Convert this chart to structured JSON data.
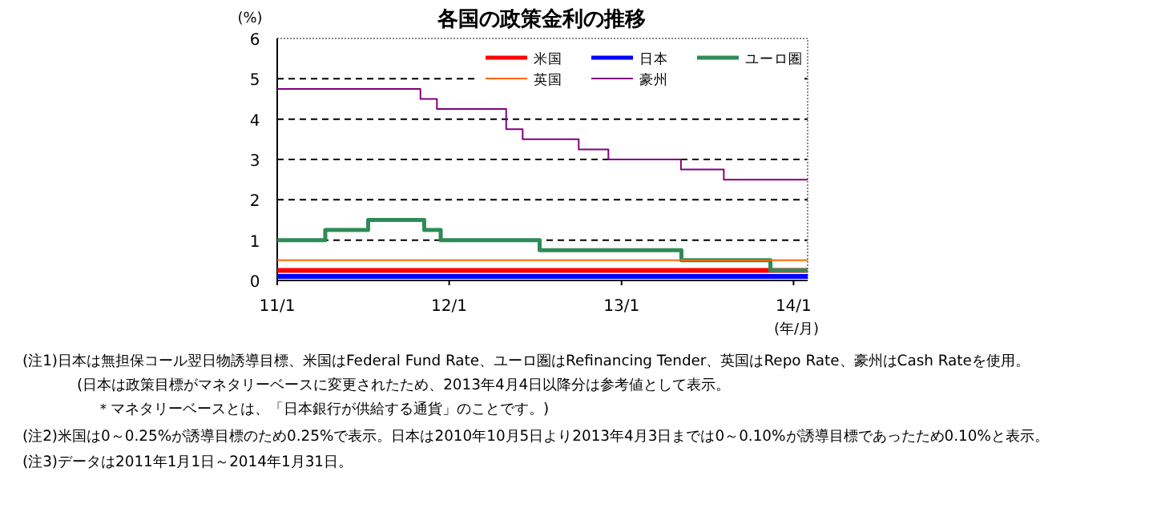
{
  "chart_data": {
    "type": "step",
    "title": "各国の政策金利の推移",
    "ylabel": "(%)",
    "xlabel": "(年/月)",
    "xlim": [
      "2011-01-01",
      "2014-01-31"
    ],
    "xticks": [
      {
        "value": "2011-01-01",
        "label": "11/1"
      },
      {
        "value": "2012-01-01",
        "label": "12/1"
      },
      {
        "value": "2013-01-01",
        "label": "13/1"
      },
      {
        "value": "2014-01-01",
        "label": "14/1"
      }
    ],
    "ylim": [
      0,
      6
    ],
    "yticks": [
      0,
      1,
      2,
      3,
      4,
      5,
      6
    ],
    "grid": "y",
    "legend": "top right",
    "series": [
      {
        "name": "米国",
        "color": "#ff0000",
        "x": [
          "2011-01-01",
          "2014-01-31"
        ],
        "values": [
          0.25,
          0.25
        ]
      },
      {
        "name": "日本",
        "color": "#0000ff",
        "x": [
          "2011-01-01",
          "2014-01-31"
        ],
        "values": [
          0.1,
          0.1
        ]
      },
      {
        "name": "ユーロ圏",
        "color": "#2e8b57",
        "x": [
          "2011-01-01",
          "2011-04-13",
          "2011-07-13",
          "2011-11-09",
          "2011-12-14",
          "2012-07-11",
          "2013-05-08",
          "2013-11-13",
          "2014-01-31"
        ],
        "values": [
          1.0,
          1.25,
          1.5,
          1.25,
          1.0,
          0.75,
          0.5,
          0.25,
          0.25
        ]
      },
      {
        "name": "英国",
        "color": "#ff6600",
        "x": [
          "2011-01-01",
          "2014-01-31"
        ],
        "values": [
          0.5,
          0.5
        ]
      },
      {
        "name": "豪州",
        "color": "#800080",
        "x": [
          "2011-01-01",
          "2011-11-01",
          "2011-12-06",
          "2012-05-01",
          "2012-06-05",
          "2012-10-02",
          "2012-12-04",
          "2013-05-07",
          "2013-08-06",
          "2014-01-31"
        ],
        "values": [
          4.75,
          4.5,
          4.25,
          3.75,
          3.5,
          3.25,
          3.0,
          2.75,
          2.5,
          2.5
        ]
      }
    ],
    "annotations": [
      "(注1)日本は無担保コール翌日物誘導目標、米国はFederal Fund Rate、ユーロ圏はRefinancing Tender、英国はRepo Rate、豪州はCash Rateを使用。",
      "(日本は政策目標がマネタリーベースに変更されたため、2013年4月4日以降分は参考値として表示。",
      "＊マネタリーベースとは、「日本銀行が供給する通貨」のことです。)",
      "(注2)米国は0～0.25%が誘導目標のため0.25%で表示。日本は2010年10月5日より2013年4月3日までは0～0.10%が誘導目標であったため0.10%と表示。",
      "(注3)データは2011年1月1日～2014年1月31日。"
    ]
  }
}
